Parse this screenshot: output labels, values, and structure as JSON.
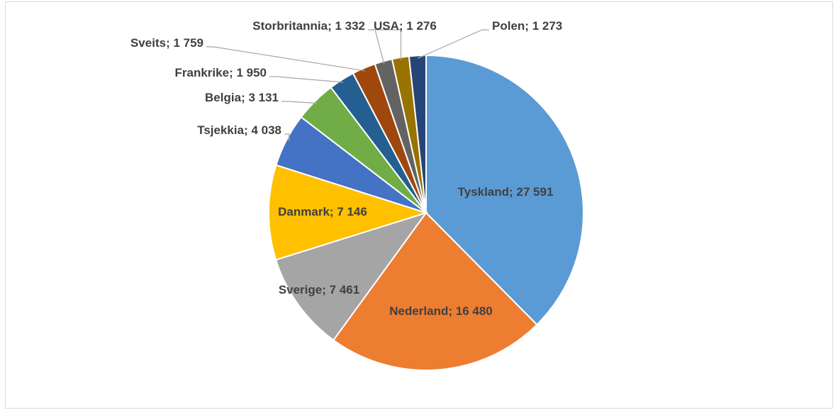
{
  "chart_data": {
    "type": "pie",
    "categories": [
      "Tyskland",
      "Nederland",
      "Sverige",
      "Danmark",
      "Tsjekkia",
      "Belgia",
      "Frankrike",
      "Sveits",
      "Storbritannia",
      "USA",
      "Polen"
    ],
    "values": [
      27591,
      16480,
      7461,
      7146,
      4038,
      3131,
      1950,
      1759,
      1332,
      1276,
      1273
    ],
    "value_labels": [
      "27 591",
      "16 480",
      "7 461",
      "7 146",
      "4 038",
      "3 131",
      "1 950",
      "1 759",
      "1 332",
      "1 276",
      "1 273"
    ],
    "label_separator": "; ",
    "colors": [
      "#5b9bd5",
      "#ed7d31",
      "#a5a5a5",
      "#ffc000",
      "#4472c4",
      "#70ad47",
      "#255e91",
      "#9e480e",
      "#636363",
      "#997300",
      "#264478"
    ]
  }
}
